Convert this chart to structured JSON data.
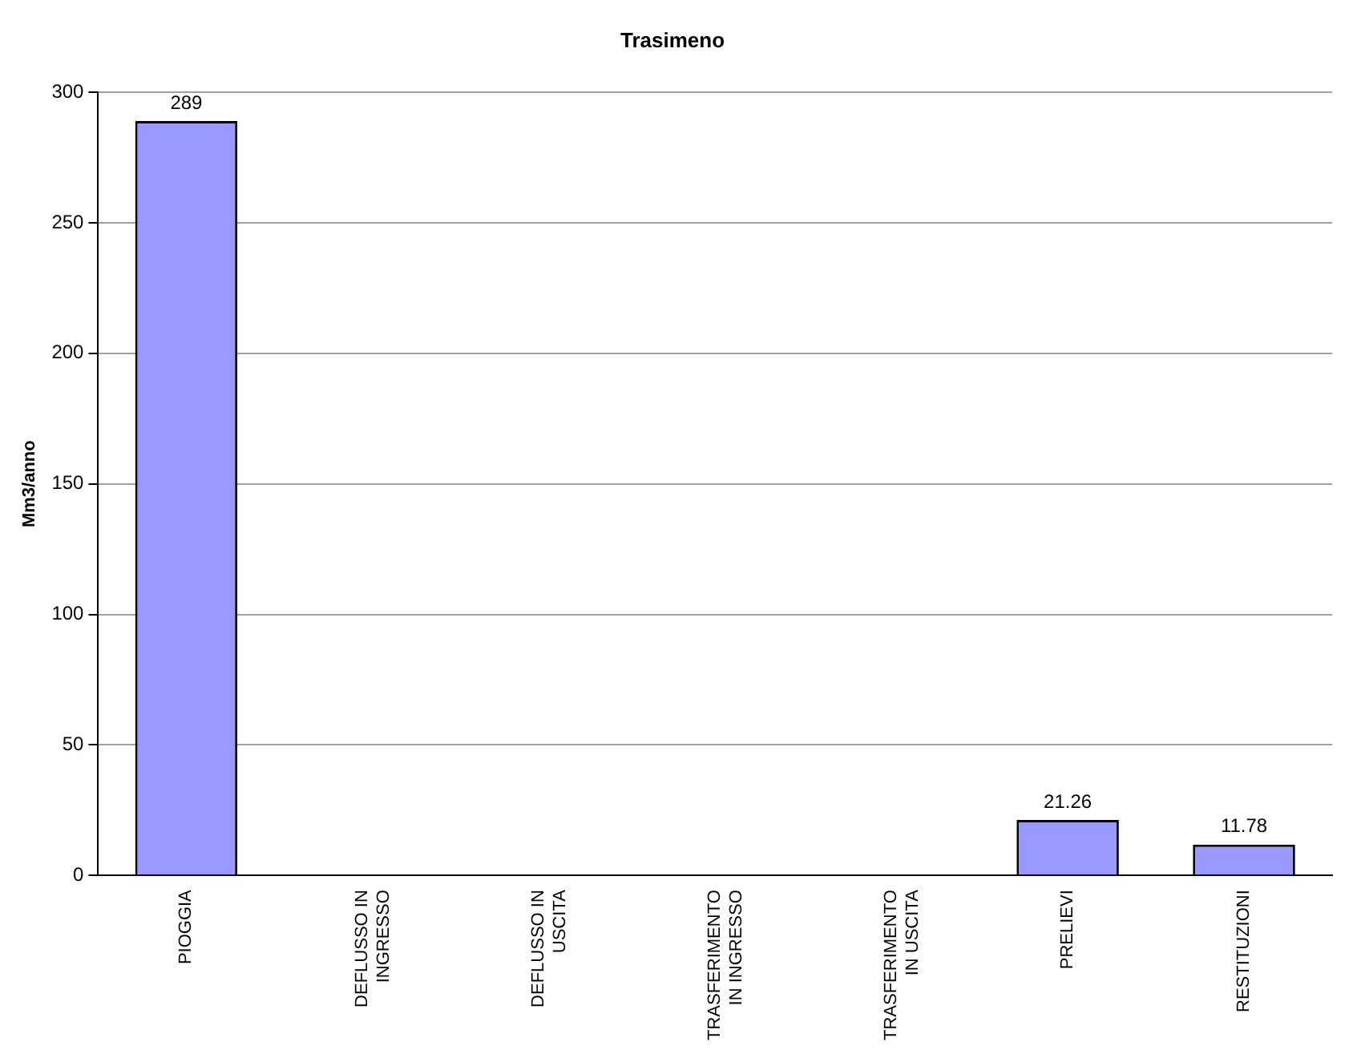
{
  "chart_data": {
    "type": "bar",
    "title": "Trasimeno",
    "ylabel": "Mm3/anno",
    "categories": [
      "PIOGGIA",
      "DEFLUSSO IN INGRESSO",
      "DEFLUSSO IN USCITA",
      "TRASFERIMENTO IN INGRESSO",
      "TRASFERIMENTO IN USCITA",
      "PRELIEVI",
      "RESTITUZIONI"
    ],
    "values": [
      289,
      null,
      null,
      null,
      null,
      21.26,
      11.78
    ],
    "value_labels": [
      "289",
      null,
      null,
      null,
      null,
      "21.26",
      "11.78"
    ],
    "color": "#9999ff",
    "ylim": [
      0,
      300
    ],
    "yticks": [
      0,
      50,
      100,
      150,
      200,
      250,
      300
    ],
    "grid": "y",
    "legend": false
  }
}
